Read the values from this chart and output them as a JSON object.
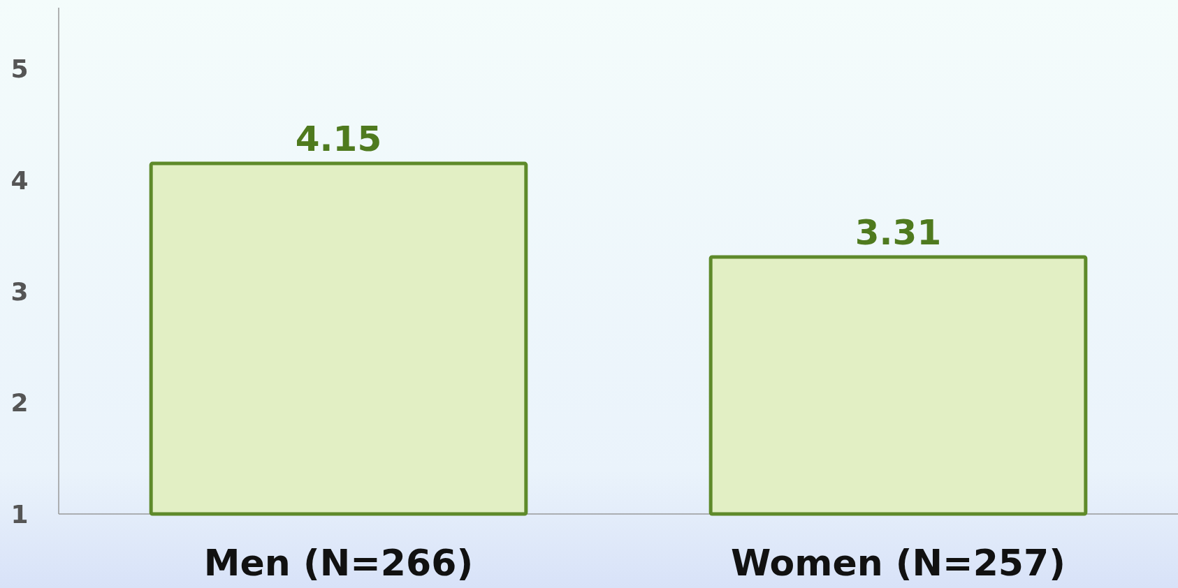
{
  "chart_data": {
    "type": "bar",
    "categories": [
      "Men (N=266)",
      "Women (N=257)"
    ],
    "values": [
      4.15,
      3.31
    ],
    "color": "#e2efc4",
    "ylim": [
      1,
      5.55
    ],
    "yticks": [
      1,
      2,
      3,
      4,
      5
    ],
    "grid": false,
    "data_labels": true
  }
}
